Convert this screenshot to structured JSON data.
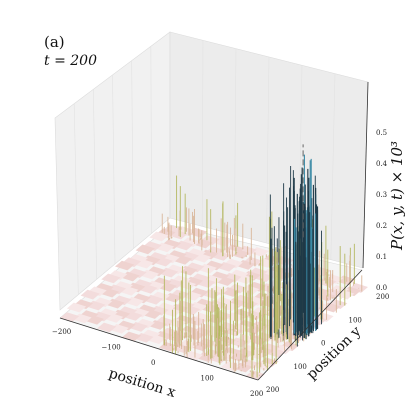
{
  "panel": {
    "label": "(a)",
    "time": "t = 200"
  },
  "chart_data": {
    "type": "surface3d",
    "title": "",
    "xlabel": "position x",
    "ylabel": "position y",
    "zlabel": "P(x, y, t) × 10³",
    "xlim": [
      -200,
      200
    ],
    "ylim": [
      -200,
      200
    ],
    "zlim": [
      0,
      0.6
    ],
    "x_ticks": [
      "−200",
      "−100",
      "0",
      "100",
      "200"
    ],
    "y_ticks": [
      "200",
      "100",
      "0",
      "100",
      "200"
    ],
    "z_ticks": [
      "0.0",
      "0.1",
      "0.2",
      "0.3",
      "0.4",
      "0.5"
    ],
    "grid": true,
    "peak": {
      "x": 180,
      "y": 0,
      "value": 0.6
    },
    "colors": {
      "low": "#f6e4e4",
      "mid": "#d9b79b",
      "high": "#b5b862",
      "peak": "#1f3a48",
      "accent": "#3a8aa6"
    }
  }
}
